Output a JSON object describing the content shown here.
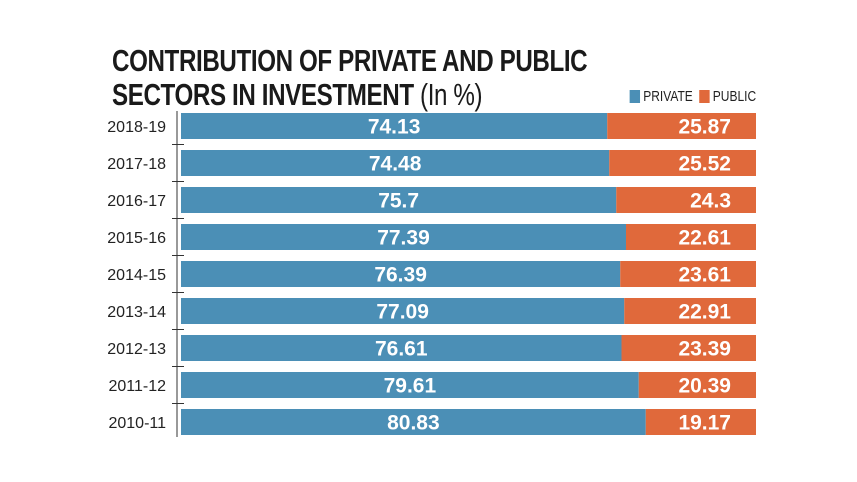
{
  "chart_data": {
    "type": "bar",
    "stacked": true,
    "orientation": "horizontal",
    "title_line1": "CONTRIBUTION OF PRIVATE AND PUBLIC",
    "title_line2": "SECTORS IN INVESTMENT",
    "title_unit": "(In %)",
    "categories": [
      "2018-19",
      "2017-18",
      "2016-17",
      "2015-16",
      "2014-15",
      "2013-14",
      "2012-13",
      "2011-12",
      "2010-11"
    ],
    "series": [
      {
        "name": "PRIVATE",
        "color": "#4b8fb6",
        "values": [
          "74.13",
          "74.48",
          "75.7",
          "77.39",
          "76.39",
          "77.09",
          "76.61",
          "79.61",
          "80.83"
        ]
      },
      {
        "name": "PUBLIC",
        "color": "#e0693b",
        "values": [
          "25.87",
          "25.52",
          "24.3",
          "22.61",
          "23.61",
          "22.91",
          "23.39",
          "20.39",
          "19.17"
        ]
      }
    ],
    "xlim": [
      0,
      100
    ],
    "legend": "top-right"
  }
}
